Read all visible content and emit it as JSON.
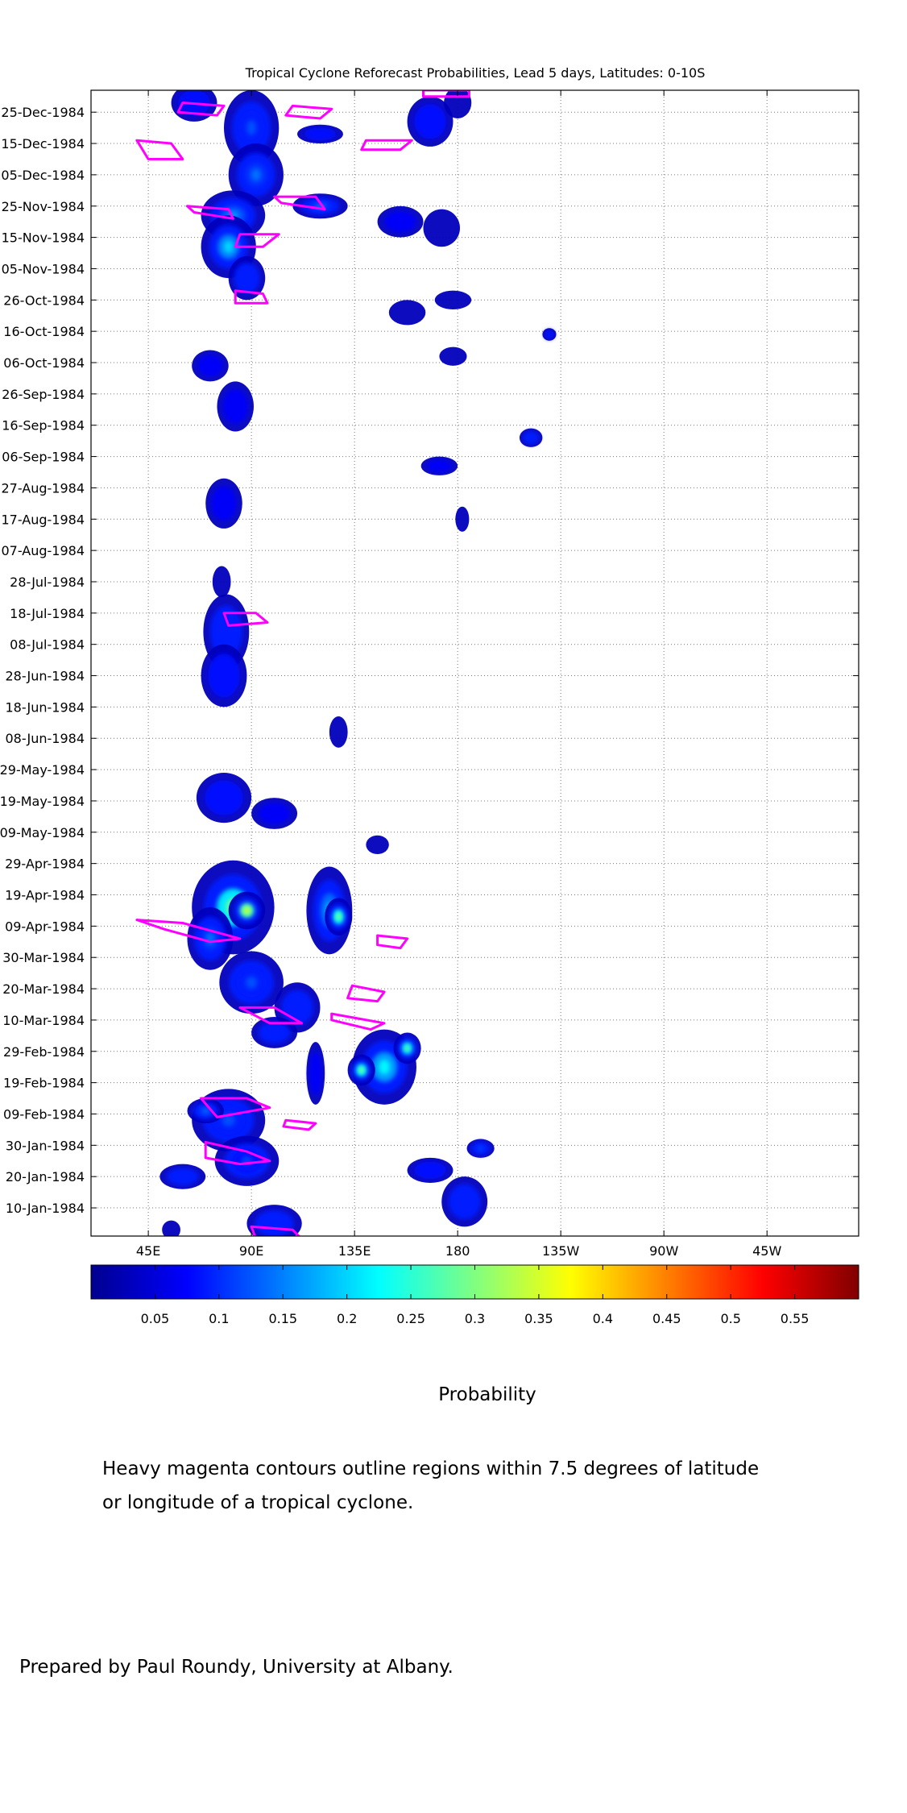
{
  "chart_data": {
    "type": "heatmap",
    "title": "Tropical Cyclone Reforecast Probabilities, Lead 5 days, Latitudes: 0-10S",
    "xlabel": "",
    "ylabel": "",
    "x_tick_labels": [
      "45E",
      "90E",
      "135E",
      "180",
      "135W",
      "90W",
      "45W"
    ],
    "x_ticks_deg_east": [
      45,
      90,
      135,
      180,
      225,
      270,
      315
    ],
    "x_range_deg_east": [
      20,
      355
    ],
    "y_tick_labels": [
      "25-Dec-1984",
      "15-Dec-1984",
      "05-Dec-1984",
      "25-Nov-1984",
      "15-Nov-1984",
      "05-Nov-1984",
      "26-Oct-1984",
      "16-Oct-1984",
      "06-Oct-1984",
      "26-Sep-1984",
      "16-Sep-1984",
      "06-Sep-1984",
      "27-Aug-1984",
      "17-Aug-1984",
      "07-Aug-1984",
      "28-Jul-1984",
      "18-Jul-1984",
      "08-Jul-1984",
      "28-Jun-1984",
      "18-Jun-1984",
      "08-Jun-1984",
      "29-May-1984",
      "19-May-1984",
      "09-May-1984",
      "29-Apr-1984",
      "19-Apr-1984",
      "09-Apr-1984",
      "30-Mar-1984",
      "20-Mar-1984",
      "10-Mar-1984",
      "29-Feb-1984",
      "19-Feb-1984",
      "09-Feb-1984",
      "30-Jan-1984",
      "20-Jan-1984",
      "10-Jan-1984"
    ],
    "y_range": [
      "1984-01-01",
      "1985-01-01"
    ],
    "grid": true,
    "colorbar": {
      "label": "Probability",
      "tick_labels": [
        "0.05",
        "0.1",
        "0.15",
        "0.2",
        "0.25",
        "0.3",
        "0.35",
        "0.4",
        "0.45",
        "0.5",
        "0.55"
      ],
      "range": [
        0,
        0.6
      ],
      "colors": [
        "#00008f",
        "#0000ff",
        "#0080ff",
        "#00ffff",
        "#80ff80",
        "#ffff00",
        "#ff8000",
        "#ff0000",
        "#800000"
      ]
    },
    "contour_color": "#ff00ff",
    "blobs": [
      {
        "lon": 65,
        "date": "1984-12-28",
        "dlon": 10,
        "ddays": 6,
        "p": 0.08
      },
      {
        "lon": 90,
        "date": "1984-12-20",
        "dlon": 12,
        "ddays": 12,
        "p": 0.12
      },
      {
        "lon": 92,
        "date": "1984-12-05",
        "dlon": 12,
        "ddays": 10,
        "p": 0.14
      },
      {
        "lon": 82,
        "date": "1984-11-22",
        "dlon": 14,
        "ddays": 8,
        "p": 0.16
      },
      {
        "lon": 80,
        "date": "1984-11-12",
        "dlon": 12,
        "ddays": 10,
        "p": 0.2
      },
      {
        "lon": 88,
        "date": "1984-11-02",
        "dlon": 8,
        "ddays": 7,
        "p": 0.1
      },
      {
        "lon": 120,
        "date": "1984-11-25",
        "dlon": 12,
        "ddays": 4,
        "p": 0.14
      },
      {
        "lon": 120,
        "date": "1984-12-18",
        "dlon": 10,
        "ddays": 3,
        "p": 0.08
      },
      {
        "lon": 168,
        "date": "1984-12-22",
        "dlon": 10,
        "ddays": 8,
        "p": 0.08
      },
      {
        "lon": 180,
        "date": "1984-12-28",
        "dlon": 6,
        "ddays": 5,
        "p": 0.06
      },
      {
        "lon": 155,
        "date": "1984-11-20",
        "dlon": 10,
        "ddays": 5,
        "p": 0.07
      },
      {
        "lon": 173,
        "date": "1984-11-18",
        "dlon": 8,
        "ddays": 6,
        "p": 0.06
      },
      {
        "lon": 178,
        "date": "1984-10-26",
        "dlon": 8,
        "ddays": 3,
        "p": 0.06
      },
      {
        "lon": 158,
        "date": "1984-10-22",
        "dlon": 8,
        "ddays": 4,
        "p": 0.06
      },
      {
        "lon": 178,
        "date": "1984-10-08",
        "dlon": 6,
        "ddays": 3,
        "p": 0.05
      },
      {
        "lon": 220,
        "date": "1984-10-15",
        "dlon": 3,
        "ddays": 2,
        "p": 0.08
      },
      {
        "lon": 72,
        "date": "1984-10-05",
        "dlon": 8,
        "ddays": 5,
        "p": 0.07
      },
      {
        "lon": 83,
        "date": "1984-09-22",
        "dlon": 8,
        "ddays": 8,
        "p": 0.07
      },
      {
        "lon": 212,
        "date": "1984-09-12",
        "dlon": 5,
        "ddays": 3,
        "p": 0.1
      },
      {
        "lon": 172,
        "date": "1984-09-03",
        "dlon": 8,
        "ddays": 3,
        "p": 0.07
      },
      {
        "lon": 78,
        "date": "1984-08-22",
        "dlon": 8,
        "ddays": 8,
        "p": 0.07
      },
      {
        "lon": 182,
        "date": "1984-08-17",
        "dlon": 3,
        "ddays": 4,
        "p": 0.06
      },
      {
        "lon": 77,
        "date": "1984-07-28",
        "dlon": 4,
        "ddays": 5,
        "p": 0.05
      },
      {
        "lon": 79,
        "date": "1984-07-12",
        "dlon": 10,
        "ddays": 12,
        "p": 0.09
      },
      {
        "lon": 78,
        "date": "1984-06-28",
        "dlon": 10,
        "ddays": 10,
        "p": 0.08
      },
      {
        "lon": 128,
        "date": "1984-06-10",
        "dlon": 4,
        "ddays": 5,
        "p": 0.05
      },
      {
        "lon": 78,
        "date": "1984-05-20",
        "dlon": 12,
        "ddays": 8,
        "p": 0.08
      },
      {
        "lon": 100,
        "date": "1984-05-15",
        "dlon": 10,
        "ddays": 5,
        "p": 0.07
      },
      {
        "lon": 145,
        "date": "1984-05-05",
        "dlon": 5,
        "ddays": 3,
        "p": 0.06
      },
      {
        "lon": 82,
        "date": "1984-04-15",
        "dlon": 18,
        "ddays": 15,
        "p": 0.28
      },
      {
        "lon": 72,
        "date": "1984-04-05",
        "dlon": 10,
        "ddays": 10,
        "p": 0.14
      },
      {
        "lon": 88,
        "date": "1984-04-14",
        "dlon": 8,
        "ddays": 6,
        "p": 0.35
      },
      {
        "lon": 124,
        "date": "1984-04-14",
        "dlon": 10,
        "ddays": 14,
        "p": 0.18
      },
      {
        "lon": 128,
        "date": "1984-04-12",
        "dlon": 6,
        "ddays": 6,
        "p": 0.3
      },
      {
        "lon": 90,
        "date": "1984-03-22",
        "dlon": 14,
        "ddays": 10,
        "p": 0.12
      },
      {
        "lon": 110,
        "date": "1984-03-14",
        "dlon": 10,
        "ddays": 8,
        "p": 0.1
      },
      {
        "lon": 100,
        "date": "1984-03-06",
        "dlon": 10,
        "ddays": 5,
        "p": 0.09
      },
      {
        "lon": 118,
        "date": "1984-02-22",
        "dlon": 4,
        "ddays": 10,
        "p": 0.07
      },
      {
        "lon": 148,
        "date": "1984-02-24",
        "dlon": 14,
        "ddays": 12,
        "p": 0.22
      },
      {
        "lon": 138,
        "date": "1984-02-23",
        "dlon": 6,
        "ddays": 5,
        "p": 0.3
      },
      {
        "lon": 158,
        "date": "1984-03-01",
        "dlon": 6,
        "ddays": 5,
        "p": 0.28
      },
      {
        "lon": 80,
        "date": "1984-02-07",
        "dlon": 16,
        "ddays": 10,
        "p": 0.12
      },
      {
        "lon": 70,
        "date": "1984-02-10",
        "dlon": 8,
        "ddays": 4,
        "p": 0.14
      },
      {
        "lon": 88,
        "date": "1984-01-25",
        "dlon": 14,
        "ddays": 8,
        "p": 0.11
      },
      {
        "lon": 60,
        "date": "1984-01-20",
        "dlon": 10,
        "ddays": 4,
        "p": 0.1
      },
      {
        "lon": 100,
        "date": "1984-01-05",
        "dlon": 12,
        "ddays": 6,
        "p": 0.1
      },
      {
        "lon": 183,
        "date": "1984-01-12",
        "dlon": 10,
        "ddays": 8,
        "p": 0.1
      },
      {
        "lon": 168,
        "date": "1984-01-22",
        "dlon": 10,
        "ddays": 4,
        "p": 0.08
      },
      {
        "lon": 190,
        "date": "1984-01-29",
        "dlon": 6,
        "ddays": 3,
        "p": 0.12
      },
      {
        "lon": 55,
        "date": "1984-01-03",
        "dlon": 4,
        "ddays": 3,
        "p": 0.06
      }
    ],
    "contours": [
      [
        [
          60,
          "1984-12-28"
        ],
        [
          78,
          "1984-12-27"
        ],
        [
          75,
          "1984-12-24"
        ],
        [
          58,
          "1984-12-25"
        ]
      ],
      [
        [
          108,
          "1984-12-27"
        ],
        [
          125,
          "1984-12-26"
        ],
        [
          120,
          "1984-12-23"
        ],
        [
          105,
          "1984-12-24"
        ]
      ],
      [
        [
          40,
          "1984-12-16"
        ],
        [
          55,
          "1984-12-15"
        ],
        [
          60,
          "1984-12-10"
        ],
        [
          45,
          "1984-12-10"
        ]
      ],
      [
        [
          140,
          "1984-12-16"
        ],
        [
          160,
          "1984-12-16"
        ],
        [
          155,
          "1984-12-13"
        ],
        [
          138,
          "1984-12-13"
        ]
      ],
      [
        [
          165,
          "1985-01-01"
        ],
        [
          185,
          "1985-01-01"
        ],
        [
          185,
          "1984-12-30"
        ],
        [
          165,
          "1984-12-30"
        ]
      ],
      [
        [
          100,
          "1984-11-28"
        ],
        [
          118,
          "1984-11-28"
        ],
        [
          122,
          "1984-11-24"
        ],
        [
          103,
          "1984-11-26"
        ]
      ],
      [
        [
          62,
          "1984-11-25"
        ],
        [
          80,
          "1984-11-24"
        ],
        [
          82,
          "1984-11-21"
        ],
        [
          65,
          "1984-11-23"
        ]
      ],
      [
        [
          85,
          "1984-11-16"
        ],
        [
          102,
          "1984-11-16"
        ],
        [
          95,
          "1984-11-12"
        ],
        [
          83,
          "1984-11-12"
        ]
      ],
      [
        [
          83,
          "1984-10-29"
        ],
        [
          95,
          "1984-10-28"
        ],
        [
          97,
          "1984-10-25"
        ],
        [
          83,
          "1984-10-25"
        ]
      ],
      [
        [
          78,
          "1984-07-18"
        ],
        [
          92,
          "1984-07-18"
        ],
        [
          97,
          "1984-07-15"
        ],
        [
          80,
          "1984-07-14"
        ]
      ],
      [
        [
          40,
          "1984-04-11"
        ],
        [
          60,
          "1984-04-10"
        ],
        [
          85,
          "1984-04-05"
        ],
        [
          72,
          "1984-04-04"
        ],
        [
          52,
          "1984-04-08"
        ]
      ],
      [
        [
          145,
          "1984-04-06"
        ],
        [
          158,
          "1984-04-05"
        ],
        [
          155,
          "1984-04-02"
        ],
        [
          145,
          "1984-04-03"
        ]
      ],
      [
        [
          134,
          "1984-03-21"
        ],
        [
          148,
          "1984-03-19"
        ],
        [
          145,
          "1984-03-16"
        ],
        [
          132,
          "1984-03-17"
        ]
      ],
      [
        [
          85,
          "1984-03-14"
        ],
        [
          100,
          "1984-03-14"
        ],
        [
          112,
          "1984-03-09"
        ],
        [
          98,
          "1984-03-09"
        ]
      ],
      [
        [
          125,
          "1984-03-12"
        ],
        [
          148,
          "1984-03-09"
        ],
        [
          142,
          "1984-03-07"
        ],
        [
          125,
          "1984-03-10"
        ]
      ],
      [
        [
          68,
          "1984-02-14"
        ],
        [
          88,
          "1984-02-14"
        ],
        [
          98,
          "1984-02-11"
        ],
        [
          75,
          "1984-02-08"
        ]
      ],
      [
        [
          105,
          "1984-02-07"
        ],
        [
          118,
          "1984-02-06"
        ],
        [
          115,
          "1984-02-04"
        ],
        [
          104,
          "1984-02-05"
        ]
      ],
      [
        [
          70,
          "1984-01-31"
        ],
        [
          88,
          "1984-01-28"
        ],
        [
          98,
          "1984-01-25"
        ],
        [
          85,
          "1984-01-24"
        ],
        [
          70,
          "1984-01-26"
        ]
      ],
      [
        [
          90,
          "1984-01-04"
        ],
        [
          108,
          "1984-01-03"
        ],
        [
          112,
          "1983-12-31"
        ],
        [
          92,
          "1983-12-31"
        ]
      ]
    ]
  },
  "notes": {
    "colorbar_label": "Probability",
    "caption_line1": "Heavy magenta contours outline regions within 7.5 degrees of latitude",
    "caption_line2": "or longitude of a tropical cyclone.",
    "credit": "Prepared by Paul Roundy, University at Albany."
  }
}
